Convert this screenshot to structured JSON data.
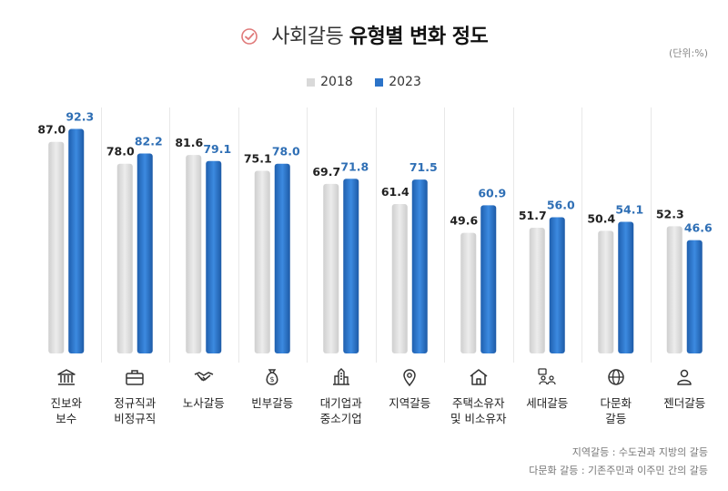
{
  "title_light": "사회갈등",
  "title_bold": "유형별 변화 정도",
  "unit": "(단위:%)",
  "colors": {
    "series_2018": "#d9d9d9",
    "series_2023": "#2b73c8"
  },
  "footnotes": [
    "지역갈등 : 수도권과 지방의 갈등",
    "다문화 갈등 : 기존주민과 이주민 간의 갈등"
  ],
  "chart_data": {
    "type": "bar",
    "series": [
      {
        "name": "2018",
        "values": [
          87.0,
          78.0,
          81.6,
          75.1,
          69.7,
          61.4,
          49.6,
          51.7,
          50.4,
          52.3
        ]
      },
      {
        "name": "2023",
        "values": [
          92.3,
          82.2,
          79.1,
          78.0,
          71.8,
          71.5,
          60.9,
          56.0,
          54.1,
          46.6
        ]
      }
    ],
    "value_labels": [
      [
        "87.0",
        "78.0",
        "81.6",
        "75.1",
        "69.7",
        "61.4",
        "49.6",
        "51.7",
        "50.4",
        "52.3"
      ],
      [
        "92.3",
        "82.2",
        "79.1",
        "78.0",
        "71.8",
        "71.5",
        "60.9",
        "56.0",
        "54.1",
        "46.6"
      ]
    ],
    "categories": [
      {
        "lines": [
          "진보와",
          "보수"
        ],
        "icon": "bank-icon"
      },
      {
        "lines": [
          "정규직과",
          "비정규직"
        ],
        "icon": "briefcase-icon"
      },
      {
        "lines": [
          "노사갈등"
        ],
        "icon": "handshake-icon"
      },
      {
        "lines": [
          "빈부갈등"
        ],
        "icon": "money-bag-icon"
      },
      {
        "lines": [
          "대기업과",
          "중소기업"
        ],
        "icon": "buildings-icon"
      },
      {
        "lines": [
          "지역갈등"
        ],
        "icon": "location-pin-icon"
      },
      {
        "lines": [
          "주택소유자",
          "및 비소유자"
        ],
        "icon": "house-icon"
      },
      {
        "lines": [
          "세대갈등"
        ],
        "icon": "generations-icon"
      },
      {
        "lines": [
          "다문화",
          "갈등"
        ],
        "icon": "globe-icon"
      },
      {
        "lines": [
          "젠더갈등"
        ],
        "icon": "person-icon"
      }
    ],
    "legend_position": "top-center",
    "grid": false
  }
}
